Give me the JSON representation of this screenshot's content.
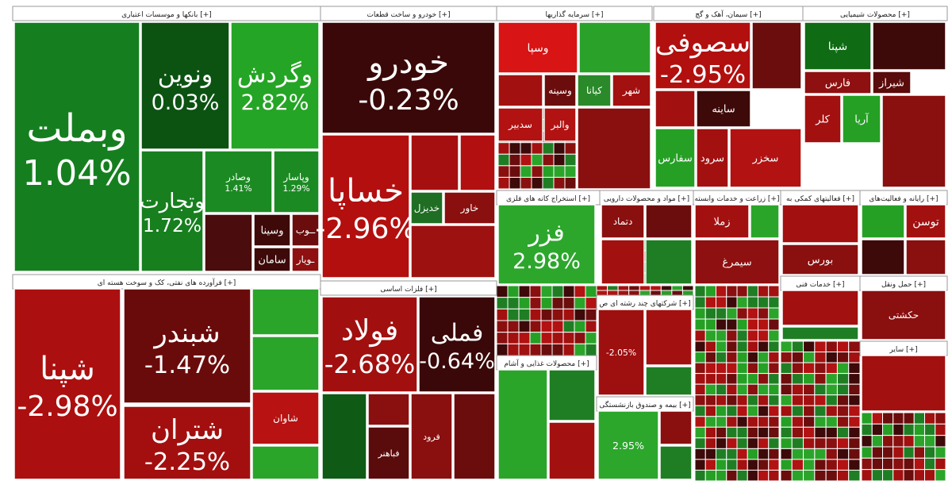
{
  "chart_data": {
    "type": "treemap",
    "sections": [
      {
        "title": "بانکها و موسسات اعتباری [+]",
        "tiles": [
          {
            "name": "وبملت",
            "value": "1.04%",
            "color": "#157f1f"
          },
          {
            "name": "ونوین",
            "value": "0.03%",
            "color": "#0c5312"
          },
          {
            "name": "وگردش",
            "value": "2.82%",
            "color": "#25a525"
          },
          {
            "name": "وتجارت",
            "value": "1.72%",
            "color": "#177f1e"
          },
          {
            "name": "وصادر",
            "value": "1.41%",
            "color": "#1c8a23"
          },
          {
            "name": "وپاسار",
            "value": "1.29%",
            "color": "#1c8a23"
          },
          {
            "name": "",
            "value": "",
            "color": "#4a0c0c"
          },
          {
            "name": "وسینا",
            "value": "",
            "color": "#3d0909"
          },
          {
            "name": "ــوب",
            "value": "",
            "color": "#6b0d0d"
          },
          {
            "name": "سامان",
            "value": "",
            "color": "#3d0909"
          },
          {
            "name": "ـویار",
            "value": "",
            "color": "#8e1010"
          }
        ]
      },
      {
        "title": "خودرو و ساخت قطعات [+]",
        "tiles": [
          {
            "name": "خودرو",
            "value": "-0.23%",
            "color": "#3a0808"
          },
          {
            "name": "خساپا",
            "value": "-2.96%",
            "color": "#b30f0f"
          },
          {
            "name": "",
            "value": "",
            "color": "#a60f0f"
          },
          {
            "name": "",
            "value": "",
            "color": "#b21010"
          },
          {
            "name": "خاور",
            "value": "",
            "color": "#8a0f0f"
          },
          {
            "name": "خدیزل",
            "value": "",
            "color": "#1f6e23"
          },
          {
            "name": "",
            "value": "",
            "color": "#9e1111"
          }
        ]
      },
      {
        "title": "سرمایه گذاریها [+]",
        "tiles": [
          {
            "name": "وسپا",
            "value": "",
            "color": "#d81414"
          },
          {
            "name": "",
            "value": "",
            "color": "#2aa22a"
          },
          {
            "name": "",
            "value": "",
            "color": "#a31010"
          },
          {
            "name": "وسینه",
            "value": "",
            "color": "#6b0d0d"
          },
          {
            "name": "کیانا",
            "value": "",
            "color": "#2a8a2a"
          },
          {
            "name": "شهر",
            "value": "",
            "color": "#a31010"
          },
          {
            "name": "سدبیر",
            "value": "",
            "color": "#b21212"
          },
          {
            "name": "والبر",
            "value": "",
            "color": "#b21212"
          },
          {
            "name": "",
            "value": "",
            "color": "#8a0f0f"
          }
        ]
      },
      {
        "title": "سیمان، آهک و گچ [+]",
        "tiles": [
          {
            "name": "سصوفی",
            "value": "-2.95%",
            "color": "#b20f0f"
          },
          {
            "name": "",
            "value": "",
            "color": "#6b0d0d"
          },
          {
            "name": "",
            "value": "",
            "color": "#a31010"
          },
          {
            "name": "ساینه",
            "value": "",
            "color": "#3d0909"
          },
          {
            "name": "سفارس",
            "value": "",
            "color": "#25a025"
          },
          {
            "name": "سرود",
            "value": "",
            "color": "#a31010"
          },
          {
            "name": "سخزر",
            "value": "",
            "color": "#b21212"
          },
          {
            "name": "",
            "value": "",
            "color": "#8a0f0f"
          }
        ]
      },
      {
        "title": "محصولات شیمیایی [+]",
        "tiles": [
          {
            "name": "شپنا",
            "value": "",
            "color": "#0f6b14"
          },
          {
            "name": "",
            "value": "",
            "color": "#3d0909"
          },
          {
            "name": "فارس",
            "value": "",
            "color": "#8e1010"
          },
          {
            "name": "شیراز",
            "value": "",
            "color": "#5a0b0b"
          },
          {
            "name": "کلر",
            "value": "",
            "color": "#a31010"
          },
          {
            "name": "آریا",
            "value": "",
            "color": "#25a025"
          },
          {
            "name": "",
            "value": "",
            "color": "#8a0f0f"
          }
        ]
      },
      {
        "title": "فرآورده های نفتی، کک و سوخت هسته ای [+]",
        "tiles": [
          {
            "name": "شپنا",
            "value": "-2.98%",
            "color": "#ac0f0f"
          },
          {
            "name": "شبندر",
            "value": "-1.47%",
            "color": "#6a0b0b"
          },
          {
            "name": "شتران",
            "value": "-2.25%",
            "color": "#a30f0f"
          },
          {
            "name": "",
            "value": "",
            "color": "#2aa52a"
          },
          {
            "name": "",
            "value": "",
            "color": "#2aa52a"
          },
          {
            "name": "شاوان",
            "value": "",
            "color": "#b81212"
          },
          {
            "name": "",
            "value": "",
            "color": "#2aa52a"
          }
        ]
      },
      {
        "title": "فلزات اساسی [+]",
        "tiles": [
          {
            "name": "فولاد",
            "value": "-2.68%",
            "color": "#a10f0f"
          },
          {
            "name": "فملی",
            "value": "-0.64%",
            "color": "#3a0808"
          },
          {
            "name": "",
            "value": "",
            "color": "#0f5a14"
          },
          {
            "name": "",
            "value": "",
            "color": "#8a0f0f"
          },
          {
            "name": "فباهنر",
            "value": "",
            "color": "#5a0b0b"
          },
          {
            "name": "فرود",
            "value": "",
            "color": "#8a0f0f"
          },
          {
            "name": "",
            "value": "",
            "color": "#6b0d0d"
          }
        ]
      },
      {
        "title": "استخراج کانه های فلزی [+]",
        "tiles": [
          {
            "name": "فزر",
            "value": "2.98%",
            "color": "#2ca72c"
          },
          {
            "name": "",
            "value": "",
            "color": "#a31010"
          },
          {
            "name": "",
            "value": "",
            "color": "#8a0f0f"
          }
        ]
      },
      {
        "title": "مواد و محصولات دارویی [+]",
        "tiles": [
          {
            "name": "دتماد",
            "value": "",
            "color": "#8a0f0f"
          },
          {
            "name": "",
            "value": "",
            "color": "#6b0d0d"
          },
          {
            "name": "",
            "value": "",
            "color": "#a31010"
          },
          {
            "name": "",
            "value": "",
            "color": "#1f7e24"
          }
        ]
      },
      {
        "title": "زراعت و خدمات وابسته [+]",
        "tiles": [
          {
            "name": "زملا",
            "value": "",
            "color": "#a31010"
          },
          {
            "name": "",
            "value": "",
            "color": "#2aa52a"
          },
          {
            "name": "سیمرغ",
            "value": "",
            "color": "#8e1010"
          }
        ]
      },
      {
        "title": "فعالیتهای کمکی به [+]",
        "tiles": [
          {
            "name": "",
            "value": "",
            "color": "#a31010"
          },
          {
            "name": "بورس",
            "value": "",
            "color": "#8a0f0f"
          }
        ]
      },
      {
        "title": "رایانه و فعالیت‌های [+]",
        "tiles": [
          {
            "name": "",
            "value": "",
            "color": "#25a025"
          },
          {
            "name": "توسن",
            "value": "",
            "color": "#a31010"
          },
          {
            "name": "",
            "value": "",
            "color": "#3d0909"
          },
          {
            "name": "",
            "value": "",
            "color": "#8a0f0f"
          }
        ]
      },
      {
        "title": "محصولات غذایی و آشام [+]",
        "tiles": [
          {
            "name": "",
            "value": "",
            "color": "#2aa52a"
          },
          {
            "name": "",
            "value": "",
            "color": "#1f7e24"
          },
          {
            "name": "",
            "value": "",
            "color": "#a31010"
          }
        ]
      },
      {
        "title": "بیمه و صندوق بازنشستگی [+]",
        "tiles": [
          {
            "name": "",
            "value": "2.95%",
            "color": "#2ca72c"
          },
          {
            "name": "",
            "value": "",
            "color": "#8a0f0f"
          },
          {
            "name": "",
            "value": "",
            "color": "#1f7e24"
          }
        ]
      },
      {
        "title": "شرکتهای چند رشته ای ص [+]",
        "tiles": [
          {
            "name": "",
            "value": "-2.05%",
            "color": "#9e0f0f"
          },
          {
            "name": "",
            "value": "",
            "color": "#a31010"
          },
          {
            "name": "",
            "value": "",
            "color": "#1f7e24"
          }
        ]
      },
      {
        "title": "خدمات فنی [+]",
        "tiles": [
          {
            "name": "",
            "value": "",
            "color": "#a31010"
          },
          {
            "name": "",
            "value": "",
            "color": "#1f7e24"
          }
        ]
      },
      {
        "title": "حمل ونقل [+]",
        "tiles": [
          {
            "name": "حکشتی",
            "value": "",
            "color": "#8a0f0f"
          },
          {
            "name": "",
            "value": "",
            "color": "#a31010"
          }
        ]
      },
      {
        "title": "سایر [+]",
        "tiles": [
          {
            "name": "",
            "value": "",
            "color": "#a31010"
          }
        ]
      }
    ]
  }
}
